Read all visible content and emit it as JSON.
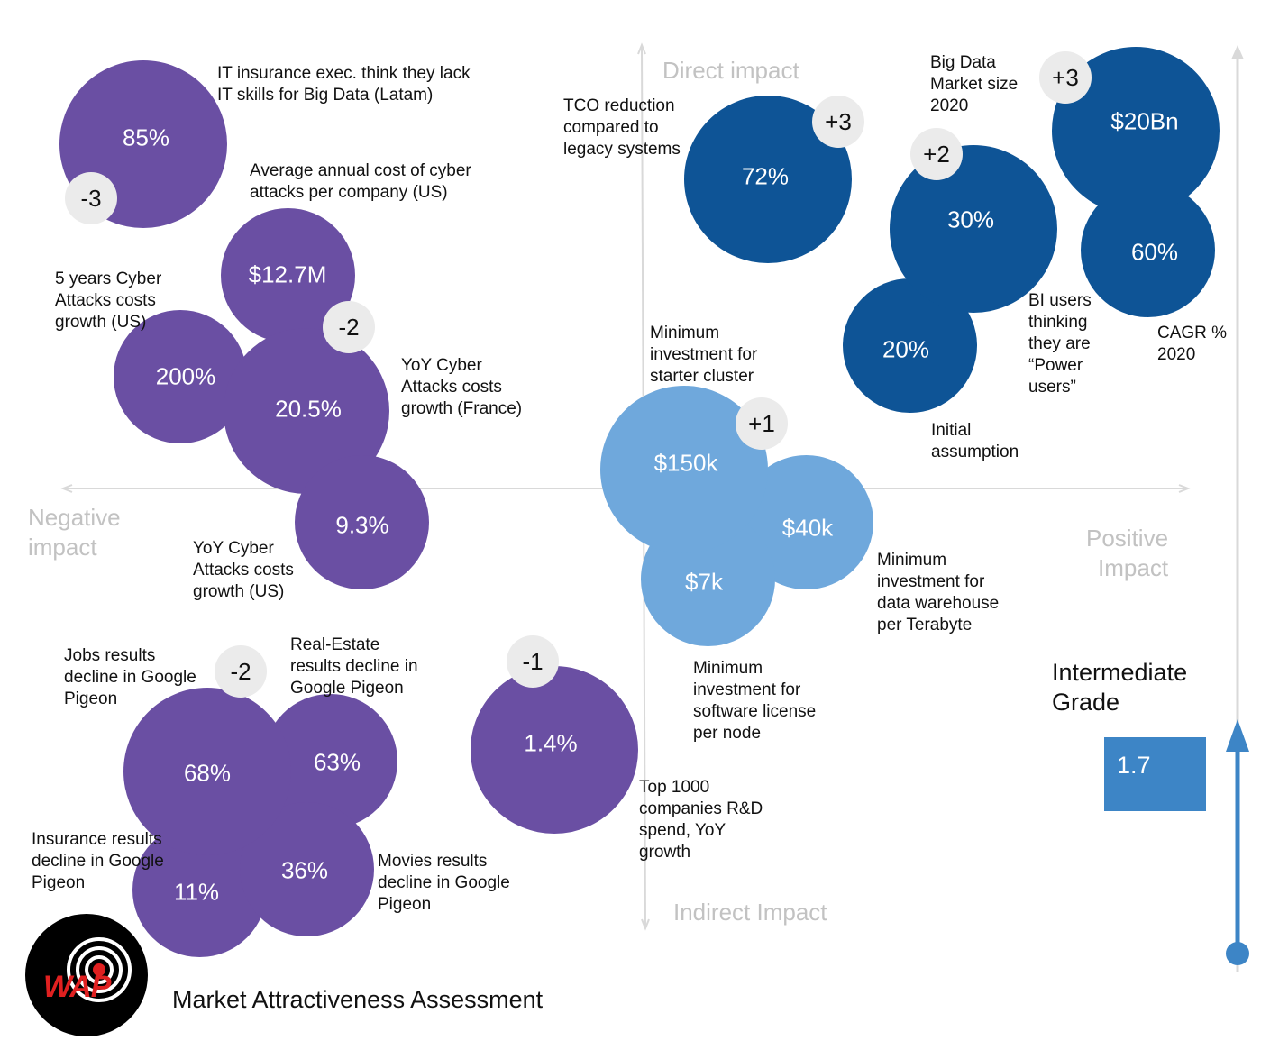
{
  "title": "Market Attractiveness Assessment",
  "axes": {
    "top": "Direct impact",
    "bottom": "Indirect Impact",
    "left": "Negative\nimpact",
    "right": "Positive\nImpact"
  },
  "grade": {
    "label": "Intermediate\nGrade",
    "value": "1.7"
  },
  "logo": {
    "text": "WAP"
  },
  "colors": {
    "negative": "#6a4fa3",
    "positive_direct": "#0e5496",
    "positive_indirect": "#6fa8dc",
    "grade": "#3d85c6",
    "axis_label": "#c2c2c2",
    "badge": "#ebebeb"
  },
  "bubbles": {
    "it_insurance": {
      "value": "85%",
      "label": "IT insurance exec. think they lack\nIT skills for Big Data (Latam)"
    },
    "cyber_cost": {
      "value": "$12.7M",
      "label": "Average annual cost of cyber\nattacks per company (US)"
    },
    "cyber_5y": {
      "value": "200%",
      "label": "5 years Cyber\nAttacks costs\ngrowth (US)"
    },
    "cyber_fr": {
      "value": "20.5%",
      "label": "YoY Cyber\nAttacks costs\ngrowth (France)"
    },
    "cyber_us": {
      "value": "9.3%",
      "label": "YoY Cyber\nAttacks costs\ngrowth (US)"
    },
    "tco": {
      "value": "72%",
      "label": "TCO reduction\ncompared to\nlegacy systems"
    },
    "bi_users": {
      "value": "30%",
      "label": "BI users\nthinking\nthey are\n“Power\nusers”"
    },
    "initial": {
      "value": "20%",
      "label": "Initial\nassumption"
    },
    "market_size": {
      "value": "$20Bn",
      "label": "Big Data\nMarket size\n2020"
    },
    "cagr": {
      "value": "60%",
      "label": "CAGR %\n2020"
    },
    "starter": {
      "value": "$150k",
      "label": "Minimum\ninvestment for\nstarter cluster"
    },
    "warehouse": {
      "value": "$40k",
      "label": "Minimum\ninvestment for\ndata warehouse\nper Terabyte"
    },
    "license": {
      "value": "$7k",
      "label": "Minimum\ninvestment for\nsoftware license\nper node"
    },
    "jobs": {
      "value": "68%",
      "label": "Jobs results\ndecline in Google\nPigeon"
    },
    "realestate": {
      "value": "63%",
      "label": "Real-Estate\nresults decline in\nGoogle Pigeon"
    },
    "movies": {
      "value": "36%",
      "label": "Movies results\ndecline in Google\nPigeon"
    },
    "insurance": {
      "value": "11%",
      "label": "Insurance results\ndecline in Google\nPigeon"
    },
    "rnd": {
      "value": "1.4%",
      "label": "Top 1000\ncompanies R&D\nspend, YoY\ngrowth"
    }
  },
  "scores": {
    "it": "-3",
    "cyber": "-2",
    "google": "-2",
    "rnd": "-1",
    "tco": "+3",
    "bi": "+2",
    "market": "+3",
    "invest": "+1"
  }
}
